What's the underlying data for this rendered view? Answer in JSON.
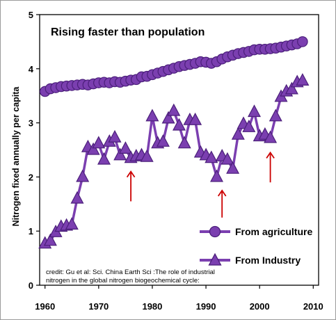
{
  "chart_data": {
    "type": "line",
    "title": "Rising faster than population",
    "xlabel": "",
    "ylabel": "Nitrogen fixed annually per capita",
    "xlim": [
      1959,
      2011
    ],
    "ylim": [
      0,
      5
    ],
    "x_ticks": [
      "1960",
      "1970",
      "1980",
      "1990",
      "2000",
      "2010"
    ],
    "y_ticks": [
      "0",
      "1",
      "2",
      "3",
      "4",
      "5"
    ],
    "legend_position": "bottom-right",
    "series": [
      {
        "name": "From agriculture",
        "marker": "circle",
        "color": "#7b3fb0",
        "x": [
          1960,
          1961,
          1962,
          1963,
          1964,
          1965,
          1966,
          1967,
          1968,
          1969,
          1970,
          1971,
          1972,
          1973,
          1974,
          1975,
          1976,
          1977,
          1978,
          1979,
          1980,
          1981,
          1982,
          1983,
          1984,
          1985,
          1986,
          1987,
          1988,
          1989,
          1990,
          1991,
          1992,
          1993,
          1994,
          1995,
          1996,
          1997,
          1998,
          1999,
          2000,
          2001,
          2002,
          2003,
          2004,
          2005,
          2006,
          2007,
          2008
        ],
        "y": [
          3.58,
          3.63,
          3.65,
          3.67,
          3.68,
          3.69,
          3.7,
          3.71,
          3.7,
          3.72,
          3.74,
          3.75,
          3.74,
          3.76,
          3.75,
          3.77,
          3.79,
          3.8,
          3.85,
          3.86,
          3.89,
          3.92,
          3.95,
          3.98,
          4.01,
          4.04,
          4.06,
          4.08,
          4.1,
          4.13,
          4.12,
          4.1,
          4.13,
          4.18,
          4.22,
          4.25,
          4.28,
          4.3,
          4.32,
          4.35,
          4.36,
          4.36,
          4.37,
          4.38,
          4.4,
          4.42,
          4.44,
          4.46,
          4.5
        ]
      },
      {
        "name": "From Industry",
        "marker": "triangle",
        "color": "#7b3fb0",
        "x": [
          1960,
          1961,
          1962,
          1963,
          1964,
          1965,
          1966,
          1967,
          1968,
          1969,
          1970,
          1971,
          1972,
          1973,
          1974,
          1975,
          1976,
          1977,
          1978,
          1979,
          1980,
          1981,
          1982,
          1983,
          1984,
          1985,
          1986,
          1987,
          1988,
          1989,
          1990,
          1991,
          1992,
          1993,
          1994,
          1995,
          1996,
          1997,
          1998,
          1999,
          2000,
          2001,
          2002,
          2003,
          2004,
          2005,
          2006,
          2007,
          2008
        ],
        "y": [
          0.77,
          0.82,
          0.98,
          1.08,
          1.1,
          1.12,
          1.6,
          2.0,
          2.55,
          2.5,
          2.62,
          2.32,
          2.65,
          2.73,
          2.4,
          2.52,
          2.35,
          2.38,
          2.4,
          2.37,
          3.12,
          2.62,
          2.65,
          3.08,
          3.22,
          2.95,
          2.62,
          3.05,
          3.05,
          2.45,
          2.4,
          2.35,
          2.0,
          2.38,
          2.32,
          2.15,
          2.78,
          2.98,
          2.92,
          3.2,
          2.75,
          2.78,
          2.72,
          3.12,
          3.48,
          3.58,
          3.62,
          3.75,
          3.78
        ]
      }
    ],
    "annotations": [
      {
        "type": "arrow",
        "color": "#cc0000",
        "direction": "up",
        "x": 1976,
        "y_from": 1.55,
        "y_to": 2.1
      },
      {
        "type": "arrow",
        "color": "#cc0000",
        "direction": "up",
        "x": 1993,
        "y_from": 1.25,
        "y_to": 1.75
      },
      {
        "type": "arrow",
        "color": "#cc0000",
        "direction": "up",
        "x": 2002,
        "y_from": 1.9,
        "y_to": 2.45
      }
    ],
    "credit_lines": [
      "credit: Gu et al: Sci. China Earth Sci :The role of industrial",
      "nitrogen in the global nitrogen biogeochemical cycle:"
    ]
  }
}
